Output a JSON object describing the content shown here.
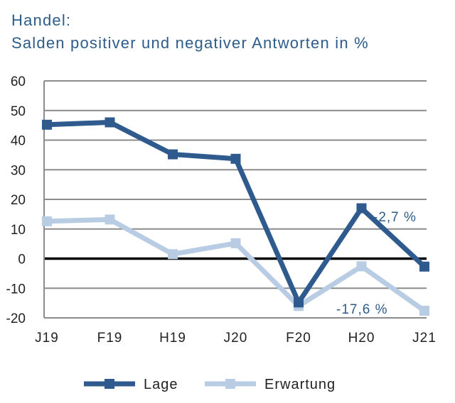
{
  "chart_data": {
    "type": "line",
    "title": "Handel:",
    "subtitle": "Salden positiver und negativer Antworten in %",
    "categories": [
      "J19",
      "F19",
      "H19",
      "J20",
      "F20",
      "H20",
      "J21"
    ],
    "series": [
      {
        "name": "Lage",
        "color": "#2e5a8e",
        "values": [
          45.2,
          46.0,
          35.2,
          33.7,
          -14.8,
          17.0,
          -2.7
        ]
      },
      {
        "name": "Erwartung",
        "color": "#b8cce4",
        "values": [
          12.6,
          13.2,
          1.5,
          5.2,
          -16.0,
          -2.6,
          -17.6
        ]
      }
    ],
    "yticks": [
      60,
      50,
      40,
      30,
      20,
      10,
      0,
      -10,
      -20
    ],
    "ytick_labels": [
      "60",
      "50",
      "40",
      "30",
      "20",
      "10",
      "0",
      "-10",
      "-20"
    ],
    "ylim": [
      -20,
      60
    ],
    "annotations": [
      {
        "text": "-2,7 %",
        "series": "Lage",
        "category": "J21"
      },
      {
        "text": "-17,6 %",
        "series": "Erwartung",
        "category": "J21"
      }
    ],
    "grid": true,
    "zero_line": true,
    "legend": "bottom"
  }
}
